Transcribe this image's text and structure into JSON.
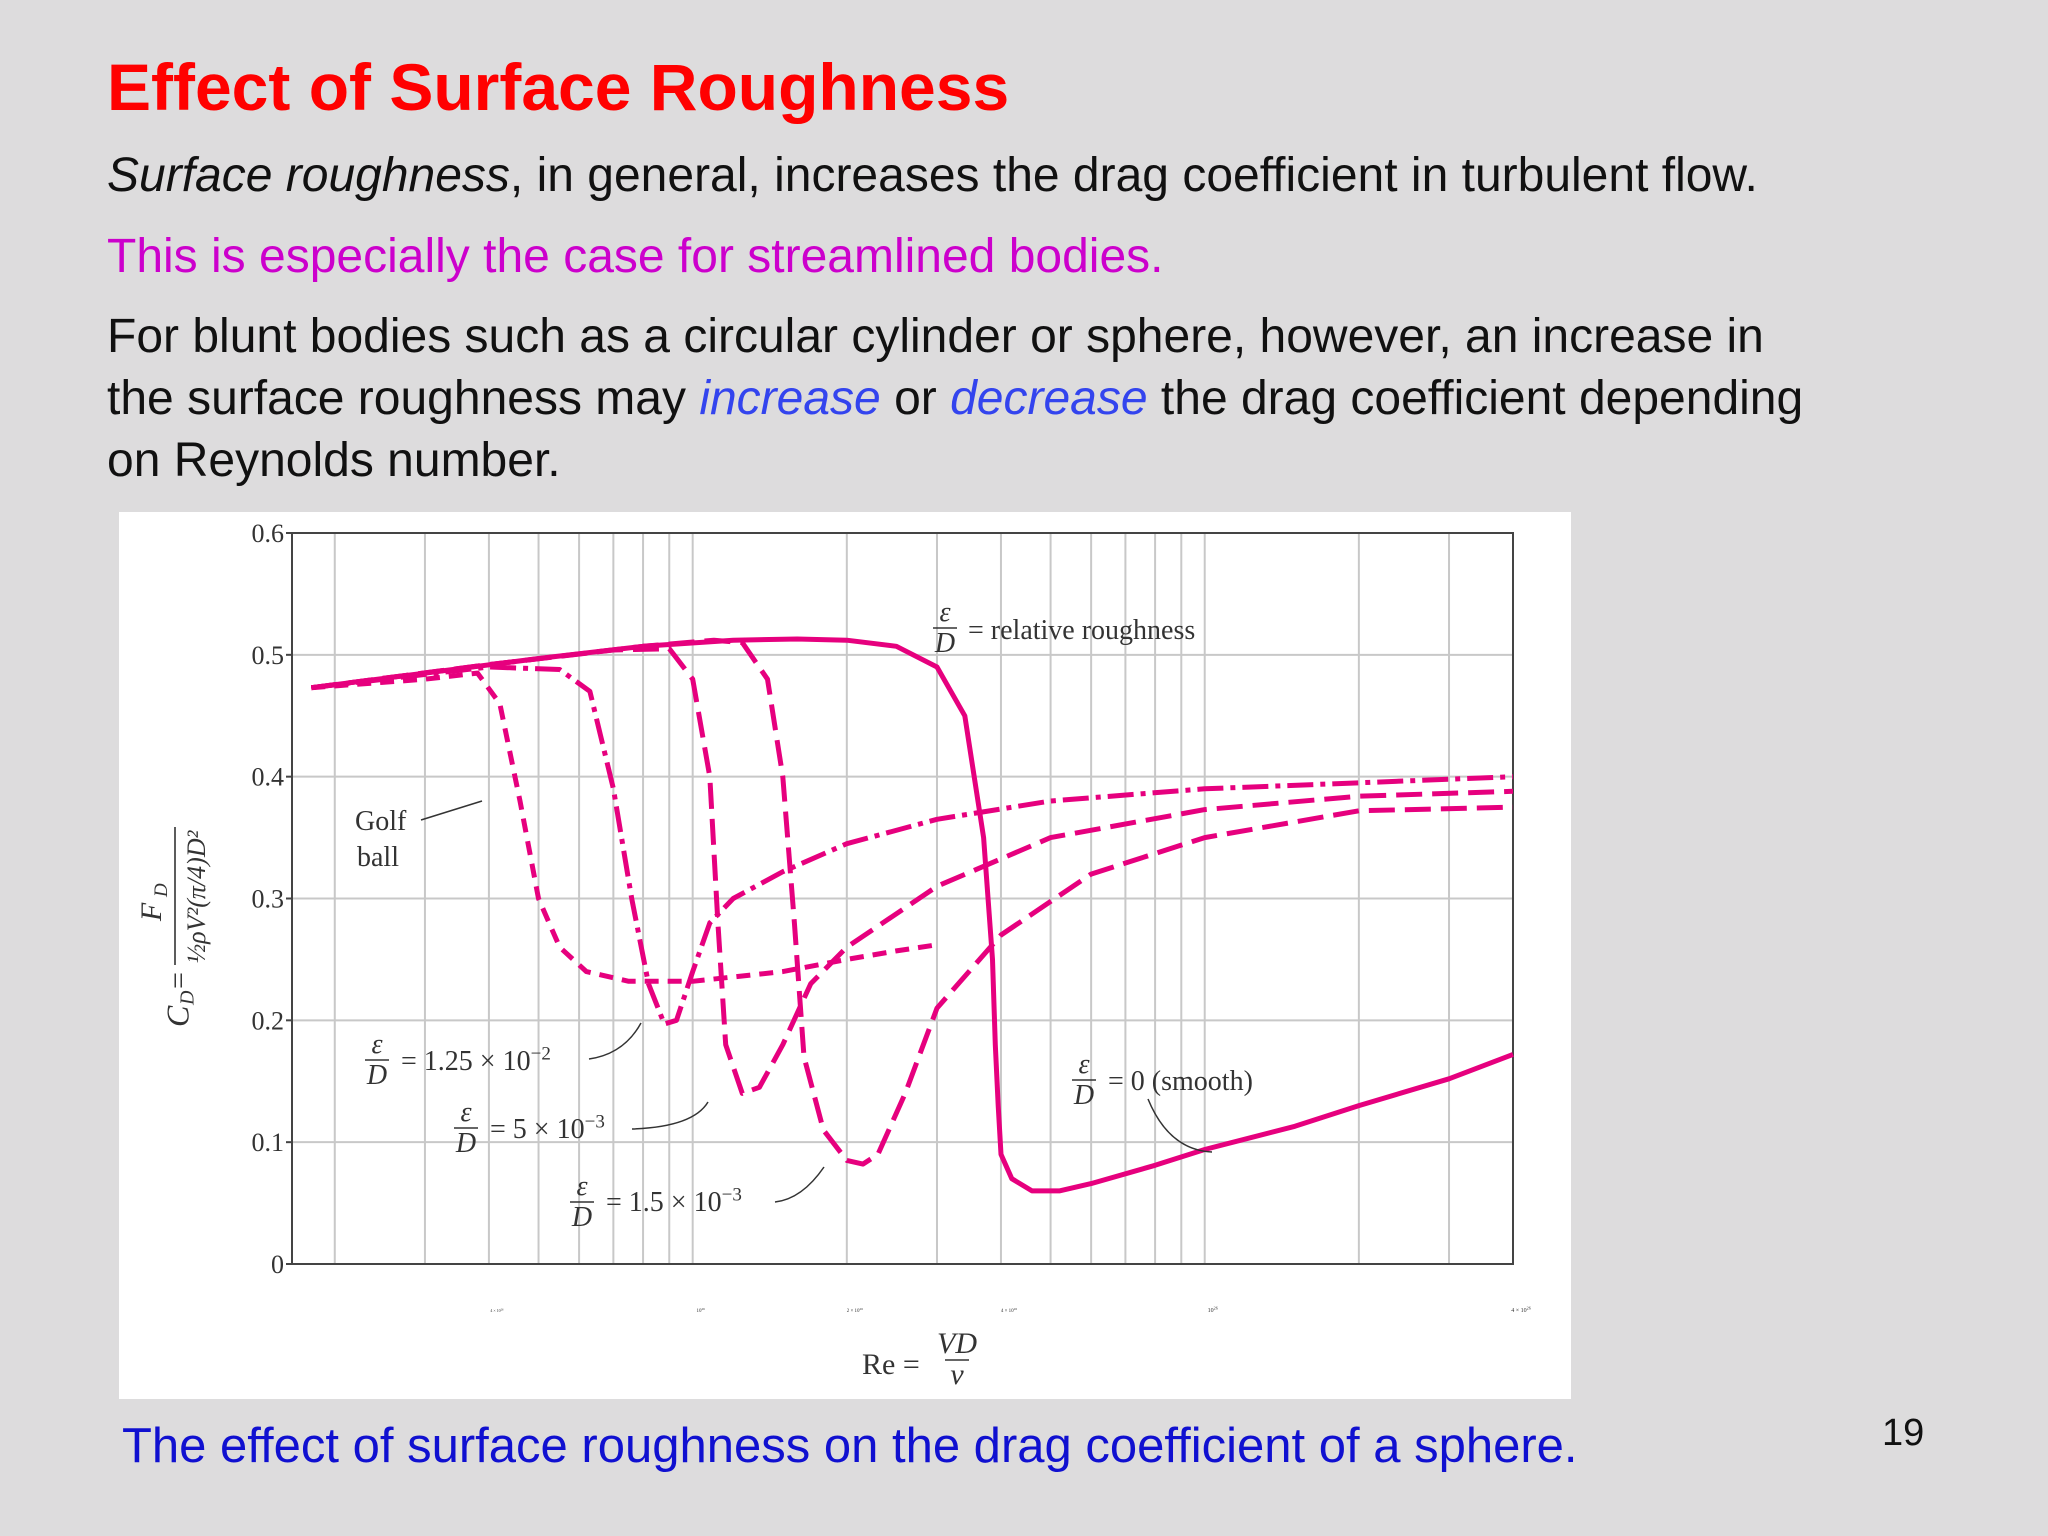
{
  "slide": {
    "title": "Effect of Surface Roughness",
    "p1_italic": "Surface roughness",
    "p1_rest": ", in general, increases the drag coefficient in turbulent flow.",
    "p2": "This is especially the case for streamlined bodies.",
    "p3_line1": "For blunt bodies such as a circular cylinder or sphere, however, an increase in",
    "p3_line2a": "the surface roughness may ",
    "p3_increase": "increase",
    "p3_or": " or ",
    "p3_decrease": "decrease",
    "p3_line2b": " the drag coefficient depending",
    "p3_line3": "on Reynolds number.",
    "caption": "The effect of surface roughness on the drag coefficient of a sphere.",
    "page_number": "19"
  },
  "colors": {
    "title": "#ff0000",
    "highlight": "#cc00cc",
    "emphasis": "#3344ee",
    "caption": "#1010d0",
    "curve": "#e6007e"
  },
  "chart_data": {
    "type": "line",
    "x_scale": "log",
    "xlim": [
      16500,
      4000000
    ],
    "ylim": [
      0,
      0.6
    ],
    "grid": true,
    "ytick_labels": [
      "0",
      "0.1",
      "0.2",
      "0.3",
      "0.4",
      "0.5",
      "0.6"
    ],
    "yticks": [
      0,
      0.1,
      0.2,
      0.3,
      0.4,
      0.5,
      0.6
    ],
    "xticks": [
      40000,
      100000,
      200000,
      400000,
      1000000,
      4000000
    ],
    "xtick_labels": [
      {
        "mant": "4 × 10",
        "exp": "4"
      },
      {
        "mant": "10",
        "exp": "5"
      },
      {
        "mant": "2 × 10",
        "exp": "5"
      },
      {
        "mant": "4 × 10",
        "exp": "5"
      },
      {
        "mant": "10",
        "exp": "6"
      },
      {
        "mant": "4 × 10",
        "exp": "6"
      }
    ],
    "ylabel_prefix": "C",
    "ylabel_sub": "D",
    "ylabel_numer": "F",
    "ylabel_numer_sub": "D",
    "ylabel_denom": "½ρV²(π/4)D²",
    "xlabel_prefix": "Re =",
    "xlabel_numer": "VD",
    "xlabel_denom": "ν",
    "series": [
      {
        "label": "= 0 (smooth)",
        "dash": "",
        "x": [
          18000,
          30000,
          50000,
          80000,
          120000,
          160000,
          200000,
          250000,
          300000,
          340000,
          370000,
          385000,
          390000,
          395000,
          400000,
          420000,
          460000,
          520000,
          600000,
          800000,
          1000000,
          1500000,
          2000000,
          3000000,
          4000000
        ],
        "y": [
          0.473,
          0.485,
          0.497,
          0.507,
          0.512,
          0.513,
          0.512,
          0.507,
          0.49,
          0.45,
          0.35,
          0.25,
          0.18,
          0.13,
          0.09,
          0.07,
          0.06,
          0.06,
          0.066,
          0.081,
          0.094,
          0.113,
          0.13,
          0.152,
          0.172
        ]
      },
      {
        "label": "= 1.5 × 10⁻³",
        "dash": "26,10",
        "x": [
          18000,
          40000,
          80000,
          110000,
          125000,
          140000,
          150000,
          158000,
          165000,
          180000,
          200000,
          215000,
          230000,
          260000,
          300000,
          400000,
          600000,
          1000000,
          2000000,
          4000000
        ],
        "y": [
          0.473,
          0.492,
          0.507,
          0.512,
          0.51,
          0.48,
          0.4,
          0.28,
          0.17,
          0.11,
          0.085,
          0.082,
          0.09,
          0.14,
          0.21,
          0.27,
          0.32,
          0.35,
          0.372,
          0.375
        ]
      },
      {
        "label": "= 5 × 10⁻³",
        "dash": "26,10",
        "x": [
          18000,
          40000,
          70000,
          90000,
          100000,
          108000,
          112000,
          116000,
          125000,
          135000,
          150000,
          170000,
          200000,
          300000,
          500000,
          1000000,
          2000000,
          4000000
        ],
        "y": [
          0.473,
          0.492,
          0.504,
          0.505,
          0.48,
          0.4,
          0.28,
          0.18,
          0.14,
          0.145,
          0.18,
          0.23,
          0.26,
          0.31,
          0.35,
          0.373,
          0.384,
          0.388
        ]
      },
      {
        "label": "= 1.25 × 10⁻²",
        "dash": "26,7,5,7",
        "x": [
          18000,
          40000,
          55000,
          63000,
          70000,
          76000,
          82000,
          88000,
          93000,
          100000,
          108000,
          120000,
          150000,
          200000,
          300000,
          500000,
          1000000,
          2000000,
          4000000
        ],
        "y": [
          0.473,
          0.49,
          0.488,
          0.47,
          0.39,
          0.3,
          0.23,
          0.197,
          0.2,
          0.24,
          0.28,
          0.3,
          0.322,
          0.345,
          0.365,
          0.38,
          0.39,
          0.395,
          0.4
        ]
      },
      {
        "label": "Golf ball",
        "dash": "14,9",
        "x": [
          18000,
          30000,
          38000,
          42000,
          46000,
          50000,
          55000,
          62000,
          75000,
          100000,
          150000,
          200000,
          250000,
          300000
        ],
        "y": [
          0.473,
          0.48,
          0.485,
          0.46,
          0.38,
          0.3,
          0.26,
          0.24,
          0.232,
          0.232,
          0.24,
          0.25,
          0.257,
          0.262
        ]
      }
    ],
    "annotations": {
      "rel_rough_text": "= relative roughness",
      "eps": "ε",
      "D": "D",
      "golf_line1": "Golf",
      "golf_line2": "ball",
      "lbl_smooth": "= 0 (smooth)",
      "lbl_15e3_mant": "= 1.5 × 10",
      "lbl_15e3_exp": "−3",
      "lbl_5e3_mant": "= 5 × 10",
      "lbl_5e3_exp": "−3",
      "lbl_125e2_mant": "= 1.25 × 10",
      "lbl_125e2_exp": "−2"
    }
  }
}
